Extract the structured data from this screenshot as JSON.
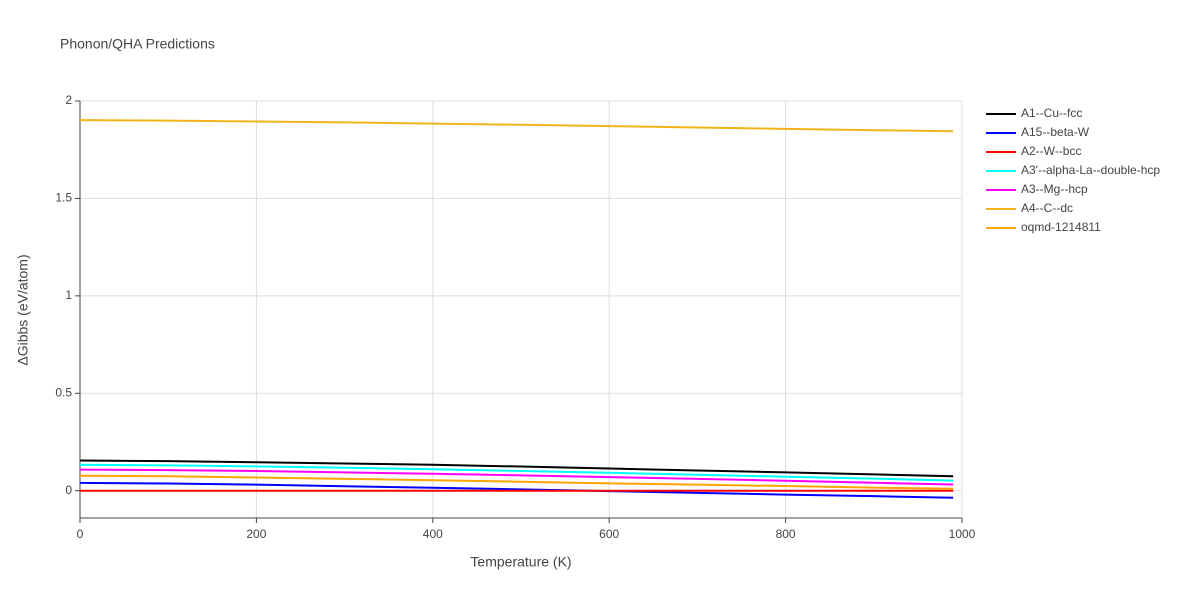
{
  "chart_data": {
    "type": "line",
    "title": "Phonon/QHA Predictions",
    "xlabel": "Temperature (K)",
    "ylabel": "ΔGibbs (eV/atom)",
    "x": [
      0,
      100,
      200,
      300,
      400,
      500,
      600,
      700,
      800,
      900,
      990
    ],
    "series": [
      {
        "name": "A1--Cu--fcc",
        "color": "#000000",
        "values": [
          0.155,
          0.152,
          0.146,
          0.14,
          0.133,
          0.124,
          0.114,
          0.104,
          0.094,
          0.084,
          0.074
        ]
      },
      {
        "name": "A15--beta-W",
        "color": "#0000ff",
        "values": [
          0.04,
          0.037,
          0.031,
          0.023,
          0.015,
          0.007,
          -0.002,
          -0.011,
          -0.02,
          -0.028,
          -0.036
        ]
      },
      {
        "name": "A2--W--bcc",
        "color": "#ff0000",
        "values": [
          0,
          0,
          0,
          0,
          0,
          0,
          0,
          0,
          0,
          0,
          0
        ]
      },
      {
        "name": "A3'--alpha-La--double-hcp",
        "color": "#00ffff",
        "values": [
          0.133,
          0.13,
          0.125,
          0.118,
          0.11,
          0.101,
          0.092,
          0.082,
          0.072,
          0.062,
          0.052
        ]
      },
      {
        "name": "A3--Mg--hcp",
        "color": "#ff00ff",
        "values": [
          0.108,
          0.106,
          0.101,
          0.094,
          0.087,
          0.079,
          0.07,
          0.061,
          0.051,
          0.041,
          0.032
        ]
      },
      {
        "name": "A4--C--dc",
        "color": "#f0b418",
        "values": [
          1.902,
          1.899,
          1.895,
          1.89,
          1.884,
          1.878,
          1.871,
          1.864,
          1.857,
          1.85,
          1.845
        ]
      },
      {
        "name": "oqmd-1214811",
        "color": "#ffa500",
        "values": [
          0.077,
          0.074,
          0.068,
          0.061,
          0.054,
          0.046,
          0.038,
          0.031,
          0.024,
          0.016,
          0.01
        ]
      }
    ],
    "xlim": [
      0,
      1000
    ],
    "xticks": [
      0,
      200,
      400,
      600,
      800,
      1000
    ],
    "ylim": [
      -0.14,
      2
    ],
    "yticks": [
      0,
      0.5,
      1,
      1.5,
      2
    ],
    "grid": true
  }
}
